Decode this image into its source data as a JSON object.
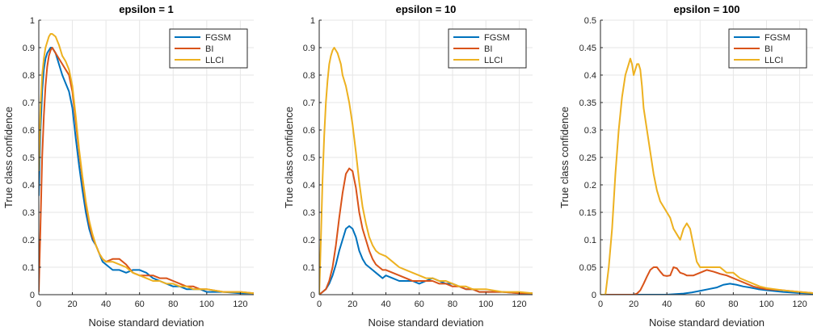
{
  "colors": {
    "FGSM": "#0072BD",
    "BI": "#D95319",
    "LLCI": "#EDB120",
    "grid": "#e6e6e6",
    "axis": "#262626"
  },
  "chart_data": [
    {
      "type": "line",
      "title": "epsilon = 1",
      "xlabel": "Noise standard deviation",
      "ylabel": "True class confidence",
      "xlim": [
        0,
        128
      ],
      "ylim": [
        0,
        1
      ],
      "xticks": [
        0,
        20,
        40,
        60,
        80,
        100,
        120
      ],
      "yticks": [
        0,
        0.1,
        0.2,
        0.3,
        0.4,
        0.5,
        0.6,
        0.7,
        0.8,
        0.9,
        1
      ],
      "ytick_labels": [
        "0",
        "0.1",
        "0.2",
        "0.3",
        "0.4",
        "0.5",
        "0.6",
        "0.7",
        "0.8",
        "0.9",
        "1"
      ],
      "grid": true,
      "legend": "top-right",
      "series": [
        {
          "name": "FGSM",
          "x": [
            0,
            1,
            2,
            3,
            4,
            5,
            6,
            7,
            8,
            10,
            12,
            14,
            16,
            18,
            20,
            22,
            24,
            26,
            28,
            30,
            32,
            34,
            36,
            38,
            40,
            42,
            44,
            48,
            52,
            56,
            60,
            64,
            68,
            72,
            76,
            80,
            84,
            88,
            92,
            96,
            100,
            110,
            120,
            128
          ],
          "y": [
            0.36,
            0.6,
            0.74,
            0.82,
            0.86,
            0.88,
            0.89,
            0.9,
            0.9,
            0.88,
            0.84,
            0.8,
            0.77,
            0.74,
            0.68,
            0.57,
            0.47,
            0.38,
            0.3,
            0.24,
            0.2,
            0.18,
            0.15,
            0.12,
            0.11,
            0.1,
            0.09,
            0.09,
            0.08,
            0.09,
            0.09,
            0.08,
            0.06,
            0.05,
            0.04,
            0.03,
            0.03,
            0.02,
            0.02,
            0.02,
            0.01,
            0.01,
            0.005,
            0.005
          ]
        },
        {
          "name": "BI",
          "x": [
            0,
            1,
            2,
            3,
            4,
            5,
            6,
            7,
            8,
            10,
            12,
            14,
            16,
            18,
            20,
            22,
            24,
            26,
            28,
            30,
            32,
            34,
            36,
            38,
            40,
            44,
            48,
            52,
            56,
            60,
            64,
            68,
            72,
            76,
            80,
            84,
            88,
            92,
            96,
            100,
            110,
            120,
            128
          ],
          "y": [
            0.01,
            0.25,
            0.5,
            0.65,
            0.76,
            0.83,
            0.87,
            0.89,
            0.9,
            0.88,
            0.86,
            0.84,
            0.82,
            0.8,
            0.74,
            0.63,
            0.52,
            0.42,
            0.33,
            0.26,
            0.21,
            0.18,
            0.15,
            0.13,
            0.12,
            0.13,
            0.13,
            0.11,
            0.08,
            0.07,
            0.07,
            0.07,
            0.06,
            0.06,
            0.05,
            0.04,
            0.03,
            0.03,
            0.02,
            0.02,
            0.01,
            0.01,
            0.005
          ]
        },
        {
          "name": "LLCI",
          "x": [
            0,
            1,
            2,
            3,
            4,
            5,
            6,
            7,
            8,
            10,
            12,
            14,
            16,
            18,
            20,
            22,
            24,
            26,
            28,
            30,
            32,
            34,
            36,
            38,
            40,
            44,
            48,
            52,
            56,
            60,
            64,
            68,
            72,
            76,
            80,
            84,
            88,
            92,
            96,
            100,
            110,
            120,
            128
          ],
          "y": [
            0.45,
            0.68,
            0.8,
            0.86,
            0.9,
            0.92,
            0.94,
            0.95,
            0.95,
            0.94,
            0.91,
            0.87,
            0.85,
            0.82,
            0.76,
            0.65,
            0.53,
            0.43,
            0.34,
            0.27,
            0.22,
            0.18,
            0.15,
            0.13,
            0.12,
            0.12,
            0.11,
            0.1,
            0.08,
            0.07,
            0.06,
            0.05,
            0.05,
            0.04,
            0.04,
            0.03,
            0.03,
            0.02,
            0.02,
            0.02,
            0.01,
            0.01,
            0.005
          ]
        }
      ]
    },
    {
      "type": "line",
      "title": "epsilon = 10",
      "xlabel": "Noise standard deviation",
      "ylabel": "True class confidence",
      "xlim": [
        0,
        128
      ],
      "ylim": [
        0,
        1
      ],
      "xticks": [
        0,
        20,
        40,
        60,
        80,
        100,
        120
      ],
      "yticks": [
        0,
        0.1,
        0.2,
        0.3,
        0.4,
        0.5,
        0.6,
        0.7,
        0.8,
        0.9,
        1
      ],
      "ytick_labels": [
        "0",
        "0.1",
        "0.2",
        "0.3",
        "0.4",
        "0.5",
        "0.6",
        "0.7",
        "0.8",
        "0.9",
        "1"
      ],
      "grid": true,
      "legend": "top-right",
      "series": [
        {
          "name": "FGSM",
          "x": [
            0,
            2,
            4,
            6,
            8,
            10,
            12,
            14,
            16,
            18,
            20,
            22,
            24,
            26,
            28,
            30,
            32,
            34,
            36,
            38,
            40,
            44,
            48,
            52,
            56,
            60,
            64,
            68,
            72,
            76,
            80,
            84,
            88,
            92,
            96,
            100,
            110,
            120,
            128
          ],
          "y": [
            0,
            0.01,
            0.02,
            0.04,
            0.07,
            0.11,
            0.16,
            0.2,
            0.24,
            0.25,
            0.24,
            0.21,
            0.16,
            0.13,
            0.11,
            0.1,
            0.09,
            0.08,
            0.07,
            0.06,
            0.07,
            0.06,
            0.05,
            0.05,
            0.05,
            0.04,
            0.05,
            0.06,
            0.05,
            0.04,
            0.04,
            0.03,
            0.02,
            0.02,
            0.01,
            0.01,
            0.01,
            0.005,
            0.005
          ]
        },
        {
          "name": "BI",
          "x": [
            0,
            2,
            4,
            6,
            8,
            10,
            12,
            14,
            16,
            18,
            20,
            22,
            24,
            26,
            28,
            30,
            32,
            34,
            36,
            38,
            40,
            44,
            48,
            52,
            56,
            60,
            64,
            68,
            72,
            76,
            80,
            84,
            88,
            92,
            96,
            100,
            110,
            120,
            128
          ],
          "y": [
            0,
            0.01,
            0.02,
            0.05,
            0.1,
            0.18,
            0.28,
            0.37,
            0.44,
            0.46,
            0.45,
            0.39,
            0.3,
            0.24,
            0.2,
            0.16,
            0.13,
            0.11,
            0.1,
            0.09,
            0.09,
            0.08,
            0.07,
            0.06,
            0.05,
            0.05,
            0.05,
            0.05,
            0.04,
            0.04,
            0.03,
            0.03,
            0.02,
            0.02,
            0.01,
            0.01,
            0.01,
            0.005,
            0.005
          ]
        },
        {
          "name": "LLCI",
          "x": [
            0,
            1,
            2,
            3,
            4,
            5,
            6,
            7,
            8,
            9,
            10,
            11,
            12,
            13,
            14,
            16,
            18,
            20,
            22,
            24,
            26,
            28,
            30,
            32,
            34,
            36,
            40,
            44,
            48,
            52,
            56,
            60,
            64,
            68,
            72,
            76,
            80,
            84,
            88,
            92,
            96,
            100,
            110,
            120,
            128
          ],
          "y": [
            0,
            0.2,
            0.42,
            0.58,
            0.7,
            0.78,
            0.84,
            0.87,
            0.89,
            0.9,
            0.89,
            0.88,
            0.86,
            0.84,
            0.8,
            0.76,
            0.7,
            0.62,
            0.52,
            0.41,
            0.32,
            0.26,
            0.21,
            0.18,
            0.16,
            0.15,
            0.14,
            0.12,
            0.1,
            0.09,
            0.08,
            0.07,
            0.06,
            0.06,
            0.05,
            0.05,
            0.04,
            0.03,
            0.03,
            0.02,
            0.02,
            0.02,
            0.01,
            0.01,
            0.005
          ]
        }
      ]
    },
    {
      "type": "line",
      "title": "epsilon = 100",
      "xlabel": "Noise standard deviation",
      "ylabel": "True class confidence",
      "xlim": [
        0,
        128
      ],
      "ylim": [
        0,
        0.5
      ],
      "xticks": [
        0,
        20,
        40,
        60,
        80,
        100,
        120
      ],
      "yticks": [
        0,
        0.05,
        0.1,
        0.15,
        0.2,
        0.25,
        0.3,
        0.35,
        0.4,
        0.45,
        0.5
      ],
      "ytick_labels": [
        "0",
        "0.05",
        "0.1",
        "0.15",
        "0.2",
        "0.25",
        "0.3",
        "0.35",
        "0.4",
        "0.45",
        "0.5"
      ],
      "grid": true,
      "legend": "top-right",
      "series": [
        {
          "name": "FGSM",
          "x": [
            0,
            20,
            40,
            50,
            55,
            60,
            65,
            70,
            74,
            78,
            82,
            86,
            90,
            95,
            100,
            110,
            120,
            128
          ],
          "y": [
            0,
            0,
            0,
            0.002,
            0.004,
            0.007,
            0.01,
            0.013,
            0.018,
            0.02,
            0.018,
            0.015,
            0.013,
            0.01,
            0.008,
            0.005,
            0.003,
            0.002
          ]
        },
        {
          "name": "BI",
          "x": [
            0,
            10,
            20,
            22,
            24,
            26,
            28,
            30,
            32,
            34,
            36,
            38,
            40,
            42,
            44,
            46,
            48,
            50,
            52,
            56,
            60,
            64,
            68,
            72,
            76,
            80,
            84,
            88,
            92,
            96,
            100,
            110,
            120,
            128
          ],
          "y": [
            0,
            0,
            0,
            0.002,
            0.008,
            0.02,
            0.033,
            0.045,
            0.05,
            0.05,
            0.042,
            0.035,
            0.034,
            0.035,
            0.05,
            0.048,
            0.04,
            0.038,
            0.035,
            0.035,
            0.04,
            0.045,
            0.042,
            0.038,
            0.035,
            0.03,
            0.025,
            0.02,
            0.015,
            0.012,
            0.01,
            0.008,
            0.005,
            0.003
          ]
        },
        {
          "name": "LLCI",
          "x": [
            0,
            3,
            5,
            7,
            9,
            11,
            13,
            15,
            17,
            18,
            19,
            20,
            21,
            22,
            23,
            24,
            25,
            26,
            28,
            30,
            32,
            34,
            36,
            38,
            40,
            42,
            44,
            46,
            48,
            50,
            52,
            54,
            56,
            58,
            60,
            64,
            68,
            72,
            76,
            80,
            84,
            88,
            92,
            96,
            100,
            110,
            120,
            128
          ],
          "y": [
            0,
            0,
            0.05,
            0.12,
            0.22,
            0.3,
            0.36,
            0.4,
            0.42,
            0.43,
            0.42,
            0.4,
            0.41,
            0.42,
            0.42,
            0.41,
            0.38,
            0.34,
            0.3,
            0.26,
            0.22,
            0.19,
            0.17,
            0.16,
            0.15,
            0.14,
            0.12,
            0.11,
            0.1,
            0.12,
            0.13,
            0.12,
            0.09,
            0.06,
            0.05,
            0.05,
            0.05,
            0.05,
            0.04,
            0.04,
            0.03,
            0.025,
            0.02,
            0.015,
            0.012,
            0.008,
            0.005,
            0.003
          ]
        }
      ]
    }
  ]
}
